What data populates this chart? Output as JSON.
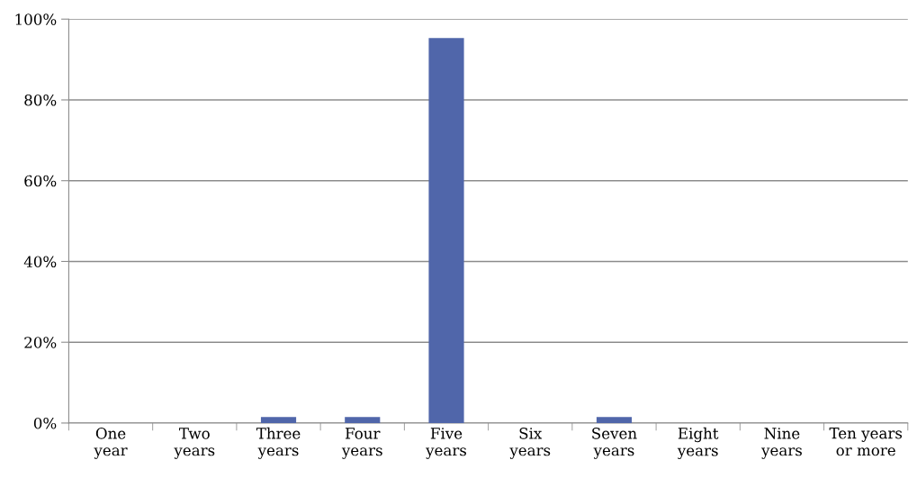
{
  "chart_data": {
    "type": "bar",
    "categories": [
      "One\nyear",
      "Two\nyears",
      "Three\nyears",
      "Four\nyears",
      "Five\nyears",
      "Six\nyears",
      "Seven\nyears",
      "Eight\nyears",
      "Nine\nyears",
      "Ten years\nor more"
    ],
    "values": [
      0,
      0,
      1.5,
      1.5,
      95.3,
      0,
      1.5,
      0,
      0,
      0
    ],
    "color": "#5066aa",
    "ylim": [
      0,
      100
    ],
    "yticks": [
      {
        "value": 0,
        "label": "0%"
      },
      {
        "value": 20,
        "label": "20%"
      },
      {
        "value": 40,
        "label": "40%"
      },
      {
        "value": 60,
        "label": "60%"
      },
      {
        "value": 80,
        "label": "80%"
      },
      {
        "value": 100,
        "label": "100%"
      }
    ],
    "grid": "y"
  }
}
